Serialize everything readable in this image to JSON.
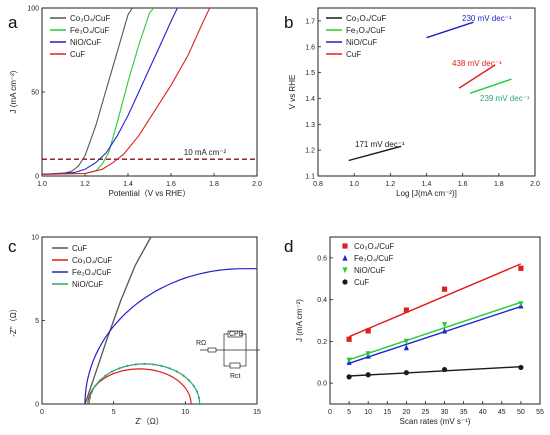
{
  "colors": {
    "black": "#1a1a1a",
    "red": "#e02020",
    "green": "#22cc33",
    "blue": "#2222cc",
    "darkred": "#8b1010",
    "gray": "#555555",
    "teal": "#2aa870"
  },
  "chart_data": [
    {
      "panel": "a",
      "type": "line",
      "xlabel": "Potential（V vs RHE）",
      "ylabel": "J (mA cm⁻²)",
      "xlim": [
        1.0,
        2.0
      ],
      "ylim": [
        0,
        100
      ],
      "xticks": [
        "1.0",
        "1.2",
        "1.4",
        "1.6",
        "1.8",
        "2.0"
      ],
      "yticks": [
        "0",
        "50",
        "100"
      ],
      "legend": [
        "Co₃O₄/CuF",
        "Fe₃O₄/CuF",
        "NiO/CuF",
        "CuF"
      ],
      "annotation": "10 mA cm⁻²",
      "series": [
        {
          "name": "Co₃O₄/CuF",
          "x": [
            1.0,
            1.1,
            1.14,
            1.17,
            1.2,
            1.25,
            1.3,
            1.35,
            1.4,
            1.42
          ],
          "y": [
            1,
            1.5,
            3,
            6,
            12,
            30,
            52,
            74,
            96,
            100
          ]
        },
        {
          "name": "Fe₃O₄/CuF",
          "x": [
            1.0,
            1.2,
            1.25,
            1.28,
            1.31,
            1.35,
            1.4,
            1.45,
            1.5,
            1.52
          ],
          "y": [
            1,
            1.5,
            3,
            7,
            14,
            32,
            56,
            78,
            97,
            100
          ]
        },
        {
          "name": "NiO/CuF",
          "x": [
            1.0,
            1.15,
            1.2,
            1.25,
            1.3,
            1.35,
            1.4,
            1.45,
            1.5,
            1.55,
            1.6,
            1.63
          ],
          "y": [
            1,
            2,
            4,
            8,
            14,
            24,
            36,
            50,
            64,
            78,
            92,
            100
          ]
        },
        {
          "name": "CuF",
          "x": [
            1.0,
            1.2,
            1.28,
            1.33,
            1.38,
            1.45,
            1.52,
            1.6,
            1.68,
            1.75,
            1.78
          ],
          "y": [
            1,
            1.5,
            4,
            8,
            13,
            24,
            38,
            54,
            72,
            92,
            100
          ]
        }
      ]
    },
    {
      "panel": "b",
      "type": "line",
      "xlabel": "Log [J(mA cm⁻²)]",
      "ylabel": "V vs RHE",
      "xlim": [
        0.8,
        2.0
      ],
      "ylim": [
        1.1,
        1.75
      ],
      "xticks": [
        "0.8",
        "1.0",
        "1.2",
        "1.4",
        "1.6",
        "1.8",
        "2.0"
      ],
      "yticks": [
        "1.1",
        "1.2",
        "1.3",
        "1.4",
        "1.5",
        "1.6",
        "1.7"
      ],
      "legend": [
        "Co₃O₄/CuF",
        "Fe₃O₄/CuF",
        "NiO/CuF",
        "CuF"
      ],
      "annotations": [
        "171 mV dec⁻¹",
        "239 mV dec⁻¹",
        "230 mV dec⁻¹",
        "438 mV dec⁻¹"
      ],
      "series": [
        {
          "name": "Co₃O₄/CuF",
          "x": [
            0.97,
            1.26
          ],
          "y": [
            1.16,
            1.215
          ]
        },
        {
          "name": "Fe₃O₄/CuF",
          "x": [
            1.64,
            1.87
          ],
          "y": [
            1.42,
            1.475
          ]
        },
        {
          "name": "NiO/CuF",
          "x": [
            1.4,
            1.66
          ],
          "y": [
            1.635,
            1.695
          ]
        },
        {
          "name": "CuF",
          "x": [
            1.58,
            1.78
          ],
          "y": [
            1.44,
            1.53
          ]
        }
      ]
    },
    {
      "panel": "c",
      "type": "line",
      "xlabel": "Z'（Ω）",
      "ylabel": "-Z''（Ω）",
      "xlim": [
        0,
        15
      ],
      "ylim": [
        0,
        10
      ],
      "xticks": [
        "0",
        "5",
        "10",
        "15"
      ],
      "yticks": [
        "0",
        "5",
        "10"
      ],
      "legend": [
        "CuF",
        "Co₃O₄/CuF",
        "Fe₃O₄/CuF",
        "NiO/CuF"
      ],
      "circuit": {
        "rs": "RΩ",
        "cpe": "CPE",
        "rct": "Rct"
      }
    },
    {
      "panel": "d",
      "type": "scatter",
      "xlabel": "Scan rates (mV s⁻¹)",
      "ylabel": "J (mA cm⁻²)",
      "xlim": [
        0,
        55
      ],
      "ylim": [
        -0.1,
        0.7
      ],
      "xticks": [
        "0",
        "5",
        "10",
        "15",
        "20",
        "25",
        "30",
        "35",
        "40",
        "45",
        "50",
        "55"
      ],
      "yticks": [
        "0.0",
        "0.2",
        "0.4",
        "0.6"
      ],
      "legend": [
        "Co₃O₄/CuF",
        "Fe₃O₄/CuF",
        "NiO/CuF",
        "CuF"
      ],
      "x": [
        5,
        10,
        20,
        30,
        50
      ],
      "series": [
        {
          "name": "Co₃O₄/CuF",
          "values": [
            0.21,
            0.25,
            0.35,
            0.45,
            0.55
          ]
        },
        {
          "name": "Fe₃O₄/CuF",
          "values": [
            0.1,
            0.13,
            0.17,
            0.25,
            0.37
          ]
        },
        {
          "name": "NiO/CuF",
          "values": [
            0.11,
            0.14,
            0.2,
            0.28,
            0.38
          ]
        },
        {
          "name": "CuF",
          "values": [
            0.03,
            0.04,
            0.05,
            0.065,
            0.075
          ]
        }
      ]
    }
  ],
  "panel_letters": [
    "a",
    "b",
    "c",
    "d"
  ]
}
